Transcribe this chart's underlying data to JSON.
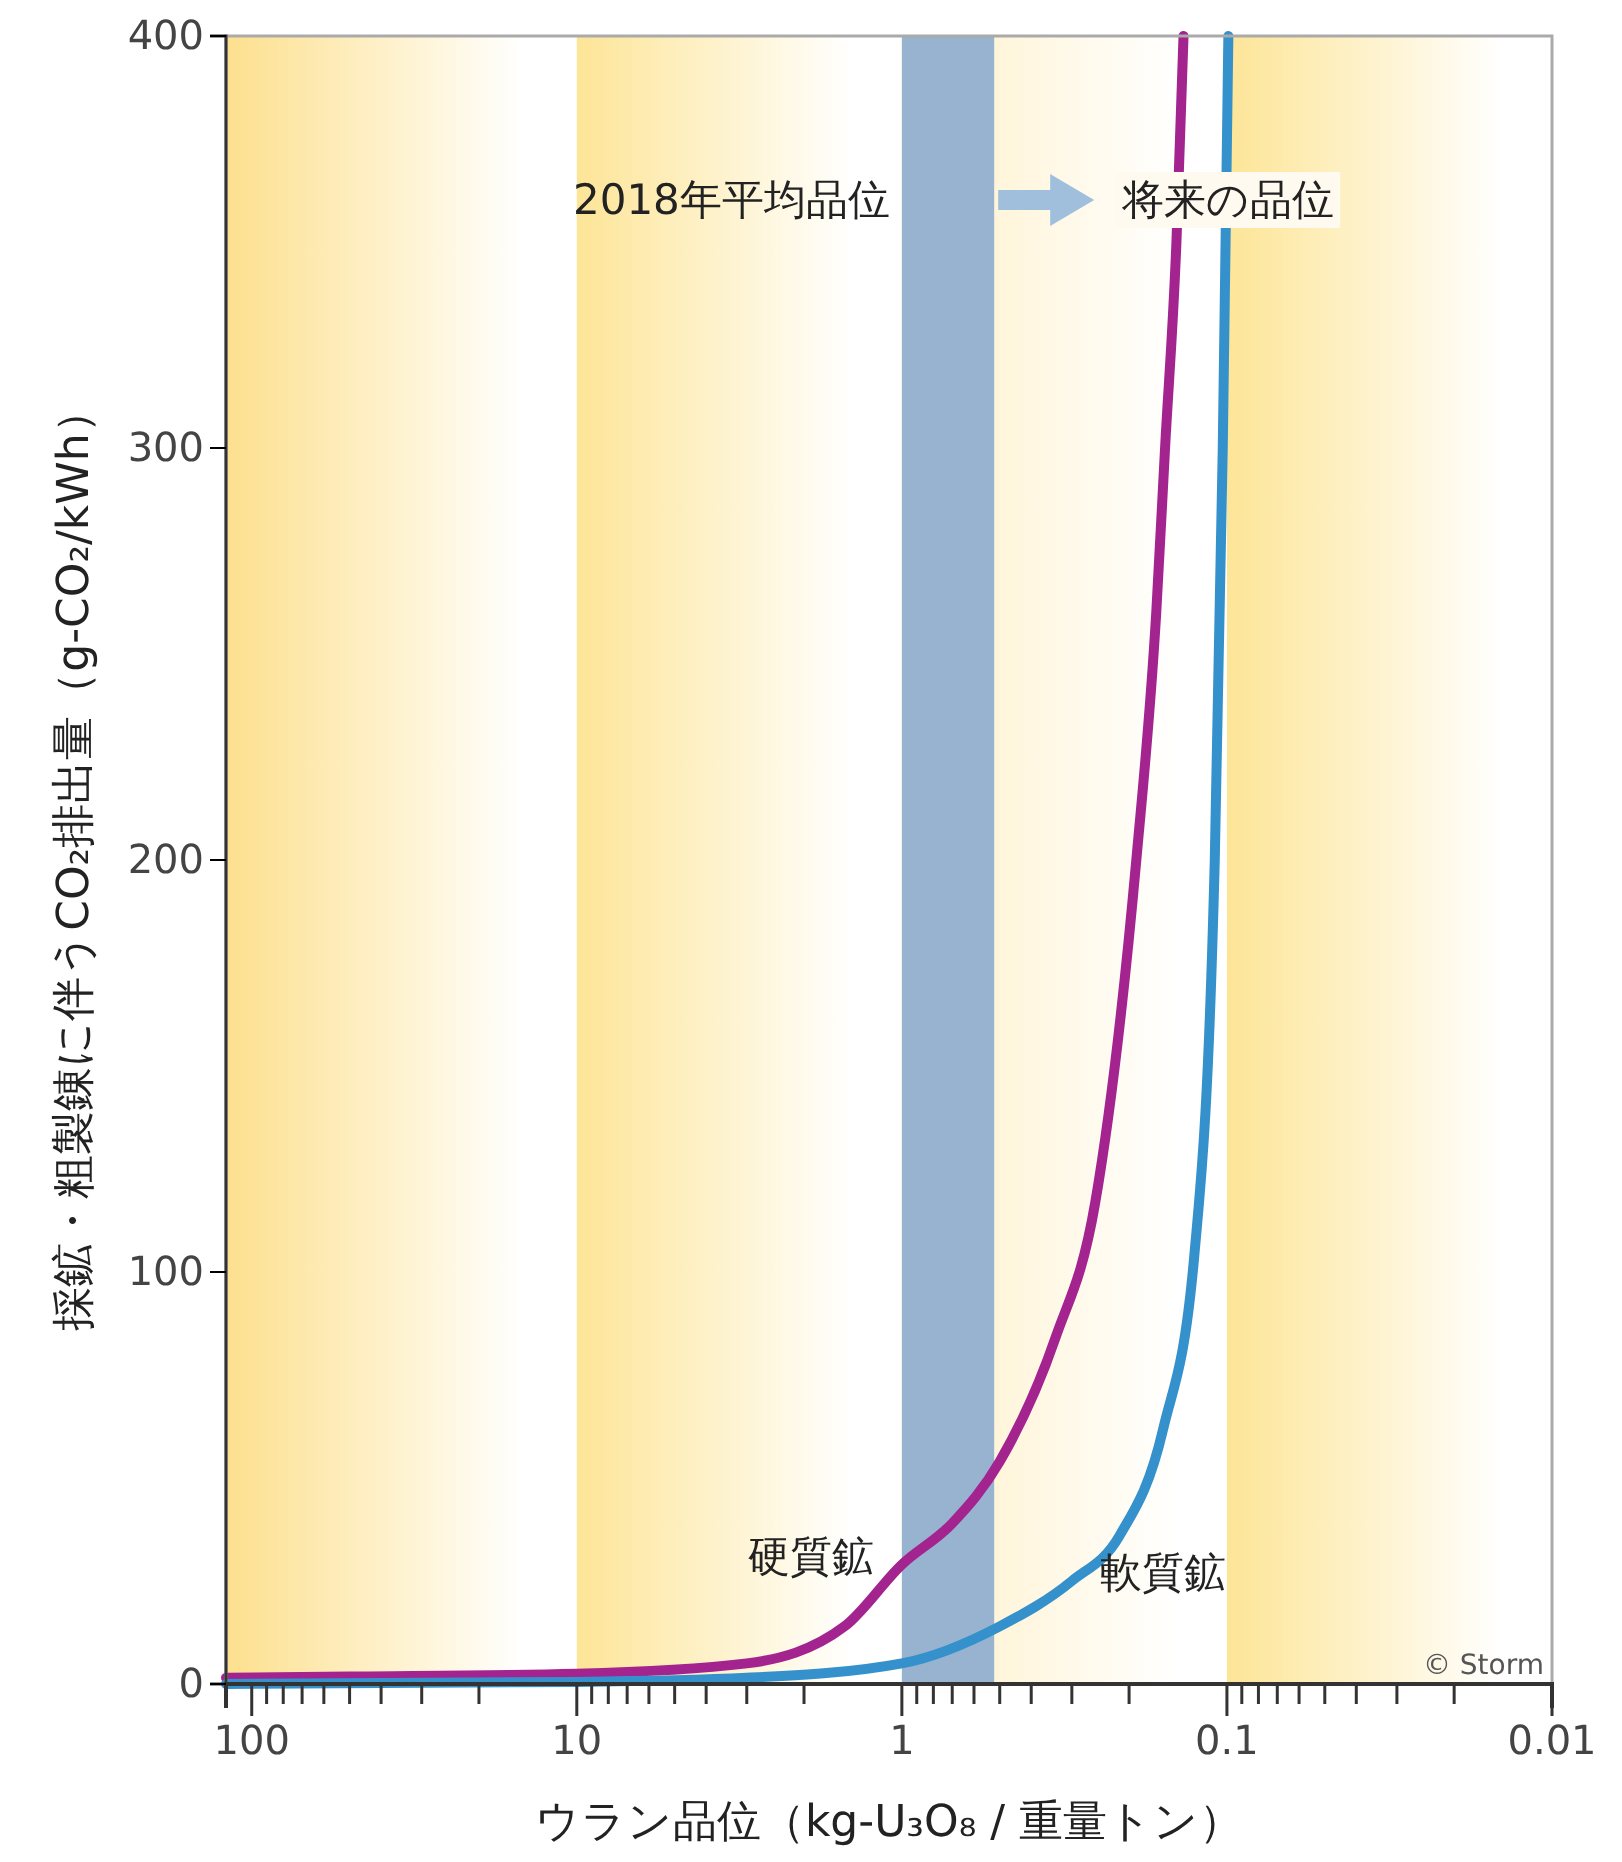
{
  "chart_data": {
    "type": "line",
    "xlabel": "ウラン品位（kg-U₃O₈ / 重量トン）",
    "ylabel": "採鉱・粗製錬に伴うCO₂排出量（g-CO₂/kWh）",
    "log": "x",
    "xlim": [
      120,
      0.01
    ],
    "ylim": [
      0,
      400
    ],
    "xticks": [
      100,
      {
        "value": 90,
        "label": null
      },
      {
        "value": 80,
        "label": null
      },
      {
        "value": 70,
        "label": null
      },
      {
        "value": 60,
        "label": null
      },
      {
        "value": 50,
        "label": null
      },
      {
        "value": 40,
        "label": null
      },
      {
        "value": 30,
        "label": null
      },
      {
        "value": 20,
        "label": null
      },
      10,
      {
        "value": 9,
        "label": null
      },
      {
        "value": 8,
        "label": null
      },
      {
        "value": 7,
        "label": null
      },
      {
        "value": 6,
        "label": null
      },
      {
        "value": 5,
        "label": null
      },
      {
        "value": 4,
        "label": null
      },
      {
        "value": 3,
        "label": null
      },
      {
        "value": 2,
        "label": null
      },
      1,
      {
        "value": 0.9,
        "label": null
      },
      {
        "value": 0.8,
        "label": null
      },
      {
        "value": 0.7,
        "label": null
      },
      {
        "value": 0.6,
        "label": null
      },
      {
        "value": 0.5,
        "label": null
      },
      {
        "value": 0.4,
        "label": null
      },
      {
        "value": 0.3,
        "label": null
      },
      {
        "value": 0.2,
        "label": null
      },
      0.1,
      {
        "value": 0.09,
        "label": null
      },
      {
        "value": 0.08,
        "label": null
      },
      {
        "value": 0.07,
        "label": null
      },
      {
        "value": 0.06,
        "label": null
      },
      {
        "value": 0.05,
        "label": null
      },
      {
        "value": 0.04,
        "label": null
      },
      {
        "value": 0.03,
        "label": null
      },
      {
        "value": 0.02,
        "label": null
      },
      0.01
    ],
    "yticks": [
      0,
      100,
      200,
      300,
      400
    ],
    "line_style": "solid",
    "marker": "none",
    "series": [
      {
        "name": "硬質鉱",
        "color": "#a3238f",
        "x": [
          120,
          50,
          10,
          3,
          1.5,
          1,
          0.7,
          0.5,
          0.337,
          0.254,
          0.19,
          0.165,
          0.155,
          0.143,
          0.136
        ],
        "values": [
          1.5,
          1.8,
          2.5,
          5,
          14,
          29,
          39,
          54,
          84,
          117,
          200,
          260,
          300,
          350,
          400
        ]
      },
      {
        "name": "軟質鉱",
        "color": "#3591cc",
        "x": [
          120,
          10,
          3,
          1,
          0.5,
          0.3,
          0.214,
          0.157,
          0.126,
          0.109,
          0.103,
          0.099
        ],
        "values": [
          0,
          0.5,
          1.5,
          5,
          14,
          25,
          36,
          62,
          104,
          200,
          300,
          400
        ]
      }
    ],
    "bands": [
      {
        "axis": "x",
        "from": 120,
        "to": 10,
        "color": "#fde08e"
      },
      {
        "axis": "x",
        "from": 10,
        "to": 1,
        "color": "#fde597"
      },
      {
        "axis": "x",
        "from": 1,
        "to": 0.1,
        "color": "#fff0c8"
      },
      {
        "axis": "x",
        "from": 0.1,
        "to": 0.01,
        "color": "#fde597"
      },
      {
        "axis": "x",
        "from": 1,
        "to": 0.52,
        "color": "#97b3cf",
        "label": "2018年平均品位"
      }
    ],
    "annotations": [
      "将来の品位",
      "© Storm"
    ]
  }
}
